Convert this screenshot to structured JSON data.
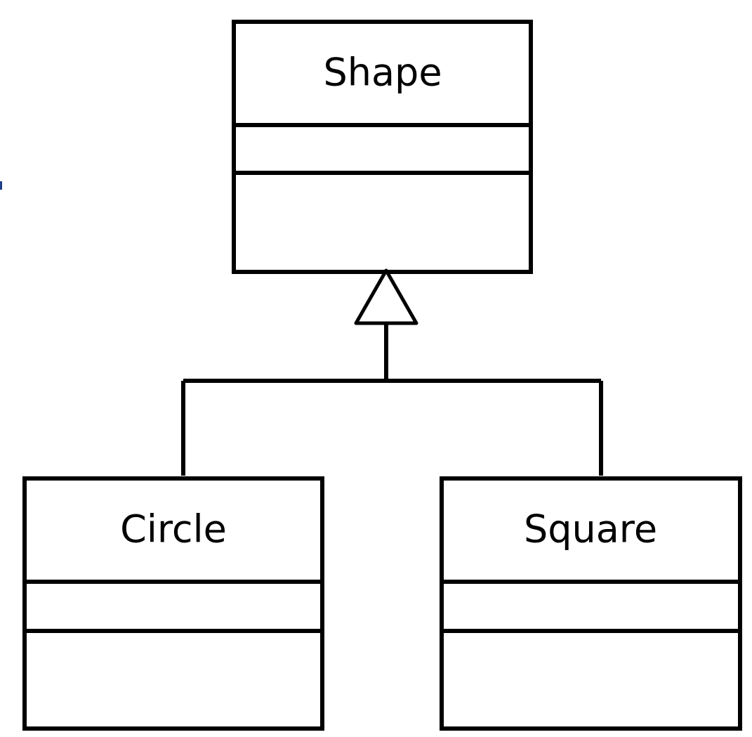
{
  "diagram": {
    "type": "uml-class-inheritance",
    "parent": {
      "name": "Shape"
    },
    "children": [
      {
        "name": "Circle"
      },
      {
        "name": "Square"
      }
    ],
    "relationship": "generalization"
  }
}
